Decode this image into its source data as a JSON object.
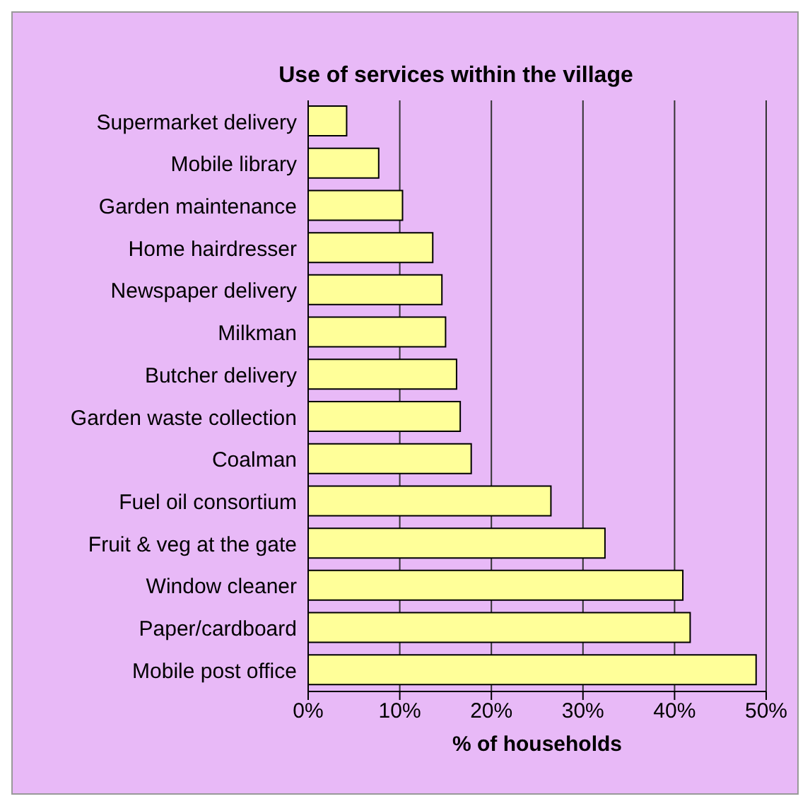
{
  "chart_data": {
    "type": "bar",
    "orientation": "horizontal",
    "title": "Use of services within the village",
    "xlabel": "% of households",
    "categories": [
      "Supermarket delivery",
      "Mobile library",
      "Garden maintenance",
      "Home hairdresser",
      "Newspaper delivery",
      "Milkman",
      "Butcher delivery",
      "Garden waste collection",
      "Coalman",
      "Fuel oil consortium",
      "Fruit & veg at the gate",
      "Window cleaner",
      "Paper/cardboard",
      "Mobile post office"
    ],
    "values": [
      4.2,
      7.7,
      10.3,
      13.6,
      14.6,
      15.0,
      16.2,
      16.6,
      17.8,
      26.5,
      32.4,
      40.9,
      41.7,
      48.9
    ],
    "color": "#ffff99",
    "xlim": [
      0,
      50
    ],
    "xticks": [
      {
        "value": 0,
        "label": "0%"
      },
      {
        "value": 10,
        "label": "10%"
      },
      {
        "value": 20,
        "label": "20%"
      },
      {
        "value": 30,
        "label": "30%"
      },
      {
        "value": 40,
        "label": "40%"
      },
      {
        "value": 50,
        "label": "50%"
      }
    ],
    "grid": "x"
  }
}
